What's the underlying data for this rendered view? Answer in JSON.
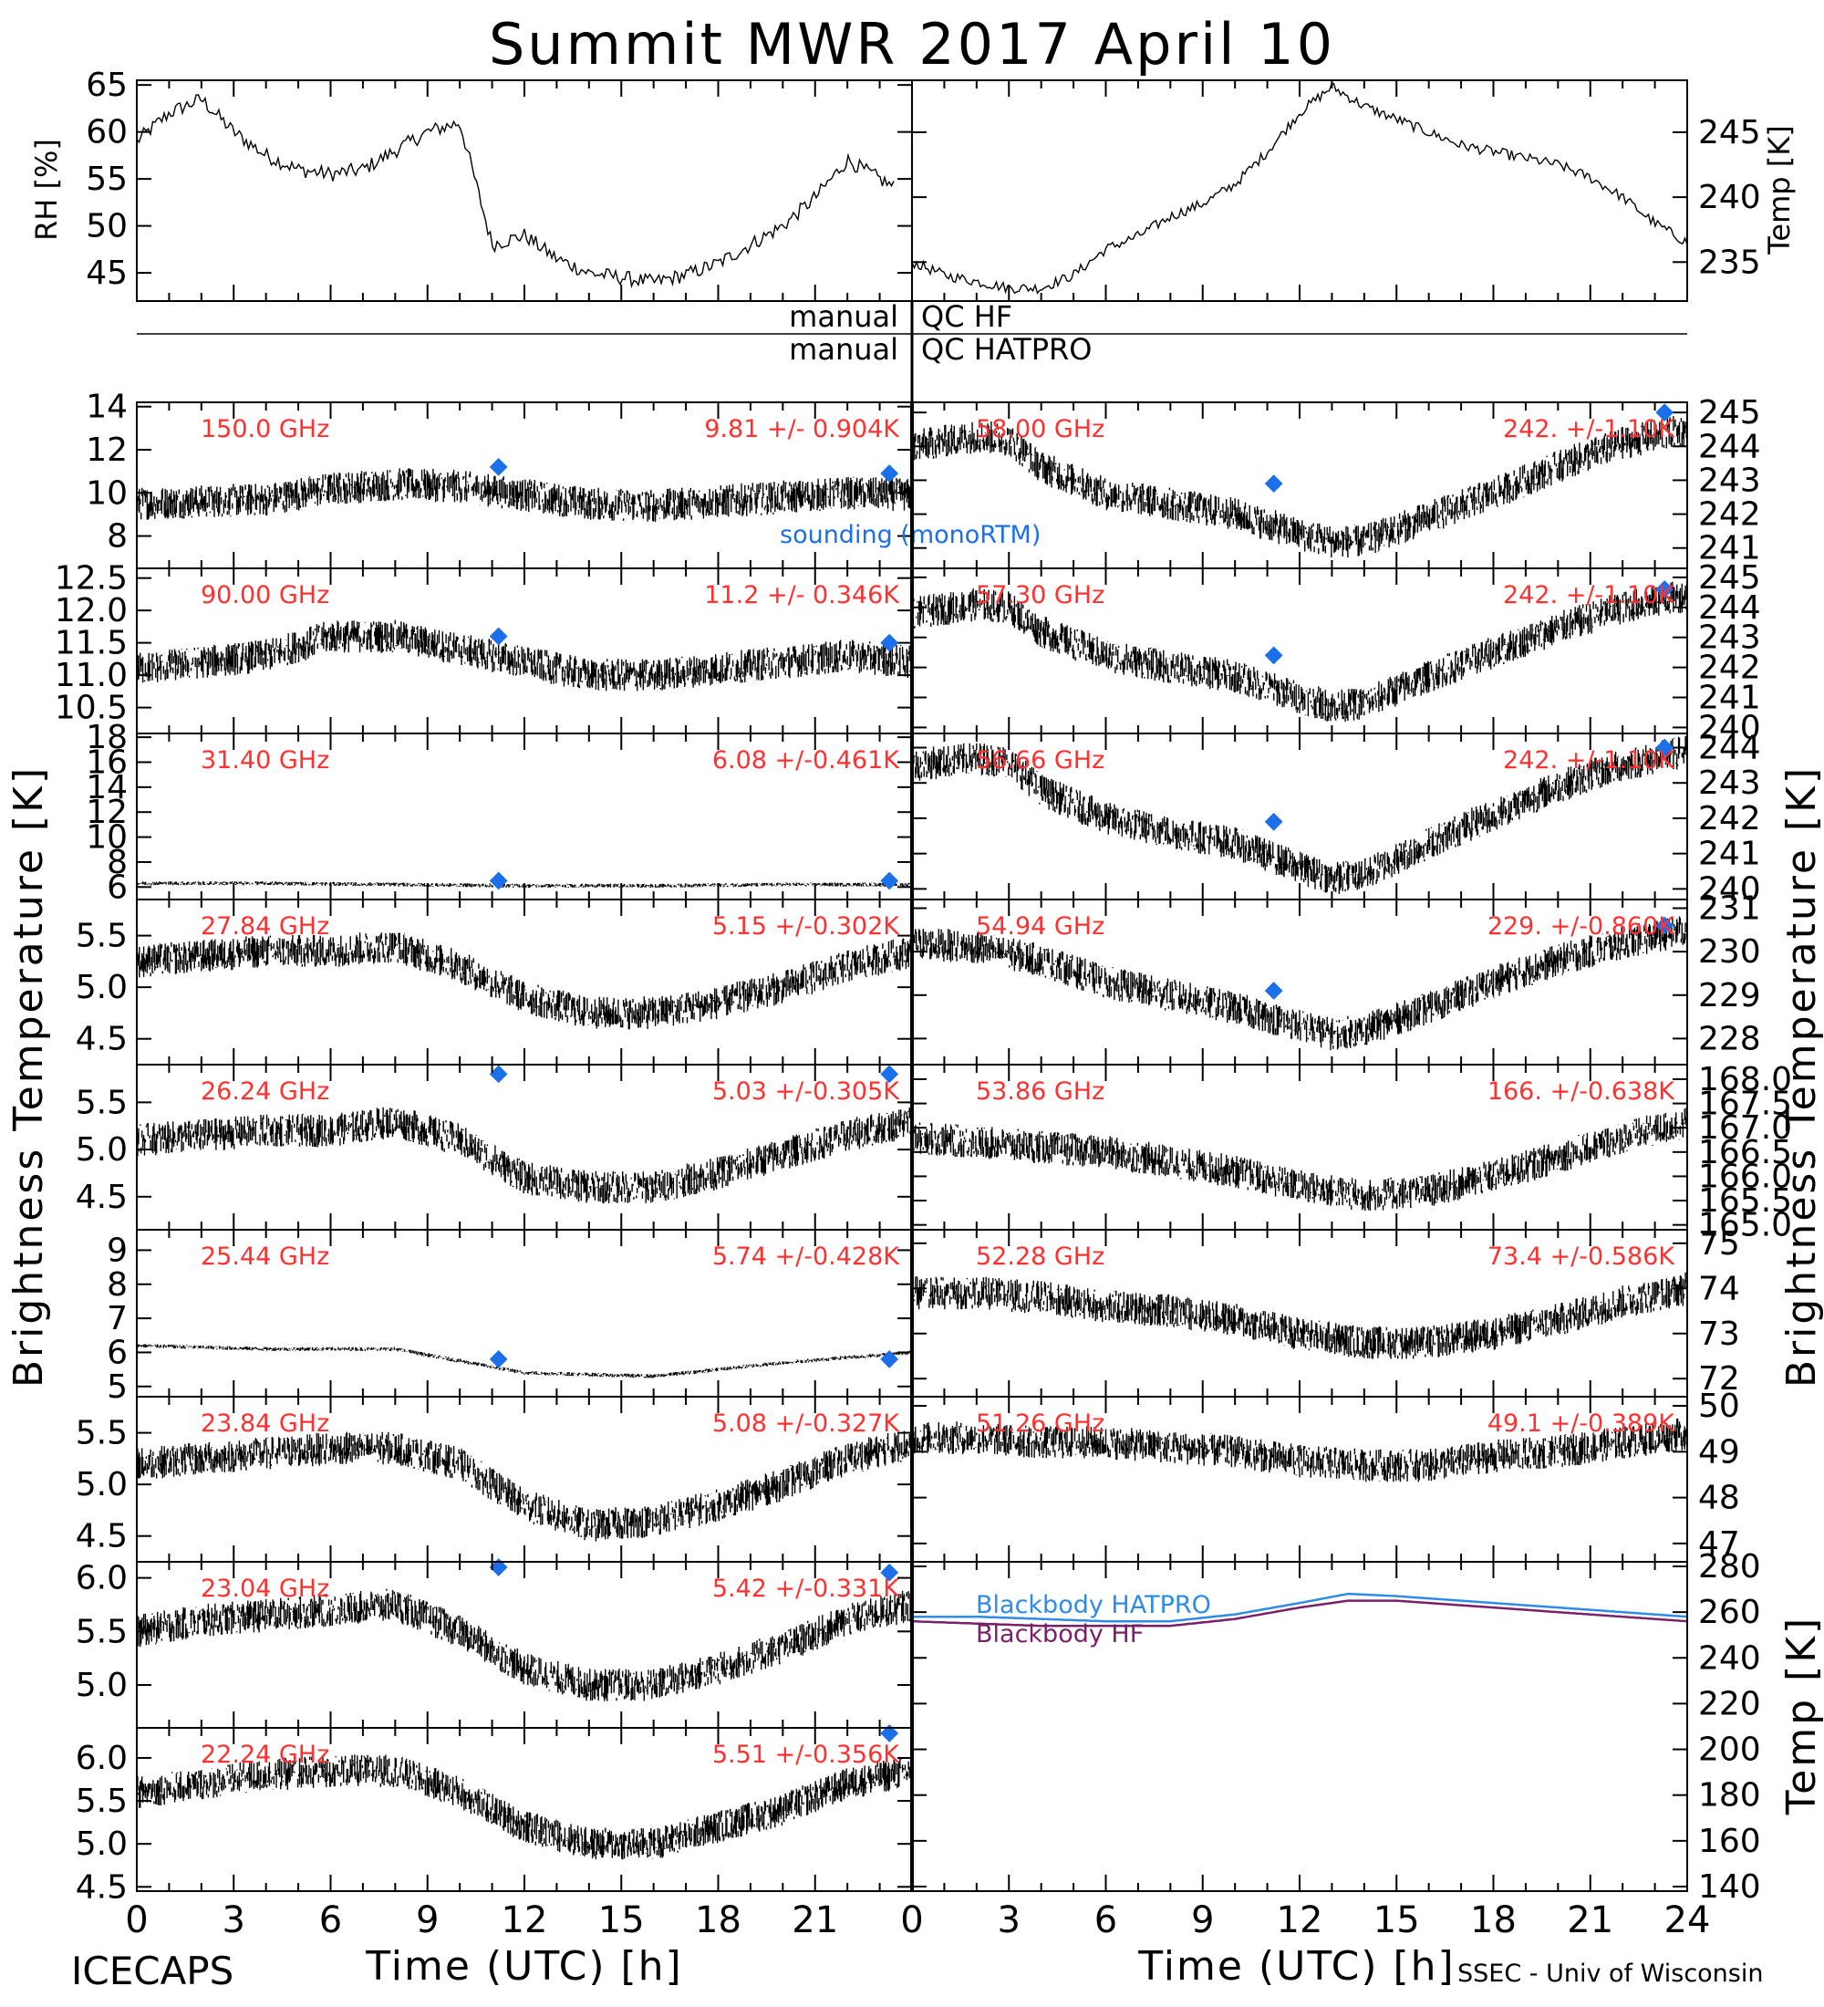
{
  "page": {
    "title": "Summit MWR 2017 April 10",
    "footer_left": "ICECAPS",
    "footer_right": "SSEC - Univ of Wisconsin",
    "colors": {
      "label": "#ff3030",
      "sounding": "#1b6fe8",
      "blackbody_hatpro": "#2f8be8",
      "blackbody_hf": "#7a1f6a",
      "data": "#000000"
    }
  },
  "chart_data": [
    {
      "id": "rh",
      "type": "line",
      "ylabel": "RH [%]",
      "ylim": [
        42,
        65.5
      ],
      "yticks": [
        "45",
        "50",
        "55",
        "60",
        "65"
      ],
      "series": [
        {
          "x": [
            0,
            1,
            2,
            3,
            4,
            5,
            6,
            7,
            8,
            9,
            10,
            11,
            12,
            13,
            14,
            15,
            16,
            17,
            18,
            19,
            20,
            21,
            22,
            23.5
          ],
          "values": [
            59,
            62,
            63.5,
            60,
            57.5,
            56,
            55.5,
            56,
            58,
            60,
            61,
            48,
            49,
            46.5,
            45,
            44.5,
            44,
            44.8,
            46,
            48,
            50,
            53,
            57,
            54
          ]
        }
      ]
    },
    {
      "id": "temp",
      "type": "line",
      "ylabel": "Temp [K]",
      "ylim": [
        232,
        249
      ],
      "yticks": [
        "235",
        "240",
        "245"
      ],
      "series": [
        {
          "x": [
            0,
            1,
            2,
            3,
            4,
            5,
            6,
            7,
            8,
            9,
            10,
            11,
            12,
            13,
            14,
            15,
            16,
            17,
            18,
            19,
            20,
            21,
            22,
            23,
            24
          ],
          "values": [
            235,
            234,
            233.5,
            233,
            233,
            234,
            236,
            237,
            238.5,
            239.5,
            241,
            243.5,
            246.5,
            248.5,
            247,
            246,
            245,
            244,
            243.5,
            243,
            242.5,
            241.5,
            240,
            238,
            236.5
          ]
        }
      ]
    },
    {
      "id": "qc",
      "type": "other",
      "labels": [
        {
          "left": "manual",
          "right": "QC HF"
        },
        {
          "left": "manual",
          "right": "QC HATPRO"
        }
      ]
    },
    {
      "id": "tb-hf-150",
      "type": "scatter",
      "frequency": "150.0 GHz",
      "stat": "9.81 +/- 0.904K",
      "ylim": [
        6.5,
        14.2
      ],
      "yticks": [
        "8",
        "10",
        "12",
        "14"
      ],
      "series": [
        {
          "x": [
            0,
            2,
            4,
            6,
            8,
            10,
            12,
            14,
            16,
            18,
            20,
            22,
            24
          ],
          "values": [
            9.5,
            9.6,
            9.7,
            10.2,
            10.4,
            10.3,
            9.9,
            9.5,
            9.4,
            9.6,
            9.8,
            10,
            9.9
          ]
        }
      ],
      "sounding": [
        {
          "x": 11.2,
          "y": 11.2
        },
        {
          "x": 23.3,
          "y": 10.9
        }
      ],
      "annotation": "sounding (monoRTM)"
    },
    {
      "id": "tb-hf-90",
      "type": "scatter",
      "frequency": "90.00 GHz",
      "stat": "11.2 +/- 0.346K",
      "ylim": [
        10.1,
        12.65
      ],
      "yticks": [
        "10.5",
        "11.0",
        "11.5",
        "12.0",
        "12.5"
      ],
      "series": [
        {
          "x": [
            0,
            2,
            4,
            6,
            8,
            10,
            12,
            14,
            16,
            18,
            20,
            22,
            24
          ],
          "values": [
            11.1,
            11.2,
            11.3,
            11.6,
            11.6,
            11.4,
            11.2,
            11.0,
            11.0,
            11.1,
            11.2,
            11.3,
            11.2
          ]
        }
      ],
      "sounding": [
        {
          "x": 11.2,
          "y": 11.6
        },
        {
          "x": 23.3,
          "y": 11.5
        }
      ]
    },
    {
      "id": "tb-hatpro-31.40",
      "type": "scatter",
      "frequency": "31.40 GHz",
      "stat": "6.08 +/-0.461K",
      "ylim": [
        5,
        18.3
      ],
      "yticks": [
        "6",
        "8",
        "10",
        "12",
        "14",
        "16",
        "18"
      ],
      "series": [
        {
          "x": [
            0,
            4,
            8,
            12,
            16,
            20,
            24
          ],
          "values": [
            6.3,
            6.3,
            6.2,
            6.1,
            6.1,
            6.2,
            6.2
          ]
        }
      ],
      "sounding": [
        {
          "x": 11.2,
          "y": 6.5
        },
        {
          "x": 23.3,
          "y": 6.5
        }
      ]
    },
    {
      "id": "tb-hatpro-27.84",
      "type": "scatter",
      "frequency": "27.84 GHz",
      "stat": "5.15 +/-0.302K",
      "ylim": [
        4.25,
        5.85
      ],
      "yticks": [
        "4.5",
        "5.0",
        "5.5"
      ],
      "series": [
        {
          "x": [
            0,
            2,
            4,
            6,
            8,
            10,
            12,
            14,
            16,
            18,
            20,
            22,
            24
          ],
          "values": [
            5.25,
            5.3,
            5.35,
            5.35,
            5.4,
            5.2,
            4.9,
            4.75,
            4.75,
            4.85,
            5.0,
            5.2,
            5.35
          ]
        }
      ]
    },
    {
      "id": "tb-hatpro-26.24",
      "type": "scatter",
      "frequency": "26.24 GHz",
      "stat": "5.03 +/-0.305K",
      "ylim": [
        4.15,
        5.9
      ],
      "yticks": [
        "4.5",
        "5.0",
        "5.5"
      ],
      "series": [
        {
          "x": [
            0,
            2,
            4,
            6,
            8,
            10,
            12,
            14,
            16,
            18,
            20,
            22,
            24
          ],
          "values": [
            5.1,
            5.15,
            5.2,
            5.2,
            5.3,
            5.1,
            4.7,
            4.6,
            4.6,
            4.75,
            4.95,
            5.15,
            5.3
          ]
        }
      ],
      "sounding": [
        {
          "x": 11.2,
          "y": 5.8
        },
        {
          "x": 23.3,
          "y": 5.8
        }
      ]
    },
    {
      "id": "tb-hatpro-25.44",
      "type": "scatter",
      "frequency": "25.44 GHz",
      "stat": "5.74 +/-0.428K",
      "ylim": [
        4.7,
        9.6
      ],
      "yticks": [
        "5",
        "6",
        "7",
        "8",
        "9"
      ],
      "series": [
        {
          "x": [
            0,
            4,
            8,
            12,
            16,
            20,
            24
          ],
          "values": [
            6.2,
            6.1,
            6.1,
            5.4,
            5.3,
            5.7,
            6.0
          ]
        }
      ],
      "sounding": [
        {
          "x": 11.2,
          "y": 5.8
        },
        {
          "x": 23.3,
          "y": 5.8
        }
      ]
    },
    {
      "id": "tb-hatpro-23.84",
      "type": "scatter",
      "frequency": "23.84 GHz",
      "stat": "5.08 +/-0.327K",
      "ylim": [
        4.25,
        5.85
      ],
      "yticks": [
        "4.5",
        "5.0",
        "5.5"
      ],
      "series": [
        {
          "x": [
            0,
            2,
            4,
            6,
            8,
            10,
            12,
            14,
            16,
            18,
            20,
            22,
            24
          ],
          "values": [
            5.2,
            5.25,
            5.3,
            5.35,
            5.35,
            5.2,
            4.8,
            4.6,
            4.65,
            4.8,
            5.0,
            5.25,
            5.4
          ]
        }
      ]
    },
    {
      "id": "tb-hatpro-23.04",
      "type": "scatter",
      "frequency": "23.04 GHz",
      "stat": "5.42 +/-0.331K",
      "ylim": [
        4.6,
        6.15
      ],
      "yticks": [
        "5.0",
        "5.5",
        "6.0"
      ],
      "series": [
        {
          "x": [
            0,
            2,
            4,
            6,
            8,
            10,
            12,
            14,
            16,
            18,
            20,
            22,
            24
          ],
          "values": [
            5.5,
            5.6,
            5.65,
            5.7,
            5.75,
            5.5,
            5.15,
            5.0,
            5.0,
            5.15,
            5.35,
            5.6,
            5.75
          ]
        }
      ],
      "sounding": [
        {
          "x": 11.2,
          "y": 6.1
        },
        {
          "x": 23.3,
          "y": 6.05
        }
      ]
    },
    {
      "id": "tb-hatpro-22.24",
      "type": "scatter",
      "frequency": "22.24 GHz",
      "stat": "5.51 +/-0.356K",
      "ylim": [
        4.45,
        6.35
      ],
      "yticks": [
        "4.5",
        "5.0",
        "5.5",
        "6.0"
      ],
      "series": [
        {
          "x": [
            0,
            2,
            4,
            6,
            8,
            10,
            12,
            14,
            16,
            18,
            20,
            22,
            24
          ],
          "values": [
            5.6,
            5.7,
            5.8,
            5.85,
            5.85,
            5.6,
            5.2,
            5.0,
            5.0,
            5.2,
            5.4,
            5.7,
            5.85
          ]
        }
      ],
      "sounding": [
        {
          "x": 23.3,
          "y": 6.3
        }
      ]
    },
    {
      "id": "tb-hatpro-58.00",
      "type": "scatter",
      "frequency": "58.00 GHz",
      "stat": "242. +/-1.10K",
      "ylim": [
        240.4,
        245.3
      ],
      "yticks": [
        "241",
        "242",
        "243",
        "244",
        "245"
      ],
      "series": [
        {
          "x": [
            0,
            2,
            3,
            4,
            6,
            8,
            10,
            12,
            13,
            14,
            16,
            18,
            20,
            22,
            24
          ],
          "values": [
            244,
            244.3,
            244.2,
            243.4,
            242.6,
            242.3,
            242,
            241.4,
            241.2,
            241.2,
            241.9,
            242.6,
            243.4,
            244.1,
            244.5
          ]
        }
      ],
      "sounding": [
        {
          "x": 11.2,
          "y": 242.9
        },
        {
          "x": 23.3,
          "y": 245
        }
      ]
    },
    {
      "id": "tb-hatpro-57.30",
      "type": "scatter",
      "frequency": "57.30 GHz",
      "stat": "242. +/-1.10K",
      "ylim": [
        239.8,
        245.3
      ],
      "yticks": [
        "240",
        "241",
        "242",
        "243",
        "244",
        "245"
      ],
      "series": [
        {
          "x": [
            0,
            2,
            3,
            4,
            6,
            8,
            10,
            12,
            13,
            14,
            16,
            18,
            20,
            22,
            24
          ],
          "values": [
            243.8,
            244.1,
            244,
            243.2,
            242.4,
            242,
            241.7,
            241,
            240.7,
            240.8,
            241.7,
            242.5,
            243.3,
            244,
            244.4
          ]
        }
      ],
      "sounding": [
        {
          "x": 11.2,
          "y": 242.4
        },
        {
          "x": 23.3,
          "y": 244.6
        }
      ]
    },
    {
      "id": "tb-hatpro-56.66",
      "type": "scatter",
      "frequency": "56.66 GHz",
      "stat": "242. +/-1.10K",
      "ylim": [
        239.7,
        244.4
      ],
      "yticks": [
        "240",
        "241",
        "242",
        "243",
        "244"
      ],
      "series": [
        {
          "x": [
            0,
            2,
            3,
            4,
            6,
            8,
            10,
            12,
            13,
            14,
            16,
            18,
            20,
            22,
            24
          ],
          "values": [
            243.5,
            243.7,
            243.6,
            242.8,
            242,
            241.6,
            241.3,
            240.6,
            240.3,
            240.4,
            241.3,
            242.1,
            242.9,
            243.5,
            243.9
          ]
        }
      ],
      "sounding": [
        {
          "x": 11.2,
          "y": 241.9
        },
        {
          "x": 23.3,
          "y": 244
        }
      ]
    },
    {
      "id": "tb-hatpro-54.94",
      "type": "scatter",
      "frequency": "54.94 GHz",
      "stat": "229. +/-0.860K",
      "ylim": [
        227.4,
        231.2
      ],
      "yticks": [
        "228",
        "229",
        "230",
        "231"
      ],
      "series": [
        {
          "x": [
            0,
            2,
            4,
            6,
            8,
            10,
            12,
            13,
            14,
            16,
            18,
            20,
            22,
            24
          ],
          "values": [
            230.2,
            230.1,
            229.8,
            229.3,
            229,
            228.7,
            228.3,
            228.1,
            228.2,
            228.7,
            229.3,
            229.8,
            230.2,
            230.5
          ]
        }
      ],
      "sounding": [
        {
          "x": 11.2,
          "y": 229.1
        },
        {
          "x": 23.3,
          "y": 230.6
        }
      ]
    },
    {
      "id": "tb-hatpro-53.86",
      "type": "scatter",
      "frequency": "53.86 GHz",
      "stat": "166. +/-0.638K",
      "ylim": [
        164.9,
        168.3
      ],
      "yticks": [
        "165.0",
        "165.5",
        "166.0",
        "166.5",
        "167.0",
        "167.5",
        "168.0"
      ],
      "series": [
        {
          "x": [
            0,
            2,
            4,
            6,
            8,
            10,
            12,
            14,
            16,
            18,
            20,
            22,
            24
          ],
          "values": [
            166.8,
            166.7,
            166.6,
            166.5,
            166.3,
            166.1,
            165.8,
            165.6,
            165.7,
            166.0,
            166.4,
            166.8,
            167.1
          ]
        }
      ]
    },
    {
      "id": "tb-hatpro-52.28",
      "type": "scatter",
      "frequency": "52.28 GHz",
      "stat": "73.4 +/-0.586K",
      "ylim": [
        71.6,
        75.3
      ],
      "yticks": [
        "72",
        "73",
        "74",
        "75"
      ],
      "series": [
        {
          "x": [
            0,
            2,
            4,
            6,
            8,
            10,
            12,
            14,
            16,
            18,
            20,
            22,
            24
          ],
          "values": [
            73.9,
            73.9,
            73.8,
            73.6,
            73.5,
            73.3,
            73.0,
            72.8,
            72.8,
            73.0,
            73.3,
            73.7,
            74.0
          ]
        }
      ]
    },
    {
      "id": "tb-hatpro-51.26",
      "type": "scatter",
      "frequency": "51.26 GHz",
      "stat": "49.1 +/-0.389K",
      "ylim": [
        46.6,
        50.2
      ],
      "yticks": [
        "47",
        "48",
        "49",
        "50"
      ],
      "series": [
        {
          "x": [
            0,
            2,
            4,
            6,
            8,
            10,
            12,
            14,
            16,
            18,
            20,
            22,
            24
          ],
          "values": [
            49.3,
            49.3,
            49.2,
            49.2,
            49.1,
            49.0,
            48.8,
            48.7,
            48.7,
            48.9,
            49.0,
            49.2,
            49.4
          ]
        }
      ]
    },
    {
      "id": "blackbody",
      "type": "line",
      "ylabel": "Temp [K]",
      "ylim": [
        138,
        282
      ],
      "yticks": [
        "140",
        "160",
        "180",
        "200",
        "220",
        "240",
        "260",
        "280"
      ],
      "series": [
        {
          "name": "Blackbody HATPRO",
          "x": [
            0,
            2,
            4,
            6,
            8,
            10,
            12,
            13.5,
            15,
            17,
            19,
            21,
            23,
            24
          ],
          "values": [
            258,
            258,
            257,
            256,
            256,
            259,
            264,
            268,
            267,
            265,
            263,
            261,
            259,
            258
          ]
        },
        {
          "name": "Blackbody HF",
          "x": [
            0,
            2,
            4,
            6,
            8,
            10,
            12,
            13.5,
            15,
            17,
            19,
            21,
            23,
            24
          ],
          "values": [
            256,
            255,
            254,
            254,
            254,
            257,
            262,
            265,
            265,
            263,
            261,
            259,
            257,
            256
          ]
        }
      ]
    }
  ],
  "axes": {
    "y_label_left": "Brightness Temperature [K]",
    "y_label_right": "Brightness Temperature [K]",
    "x_label": "Time (UTC) [h]",
    "x_ticks_left": [
      "0",
      "3",
      "6",
      "9",
      "12",
      "15",
      "18",
      "21"
    ],
    "x_ticks_right": [
      "0",
      "3",
      "6",
      "9",
      "12",
      "15",
      "18",
      "21",
      "24"
    ],
    "xlim": [
      0,
      24
    ]
  }
}
